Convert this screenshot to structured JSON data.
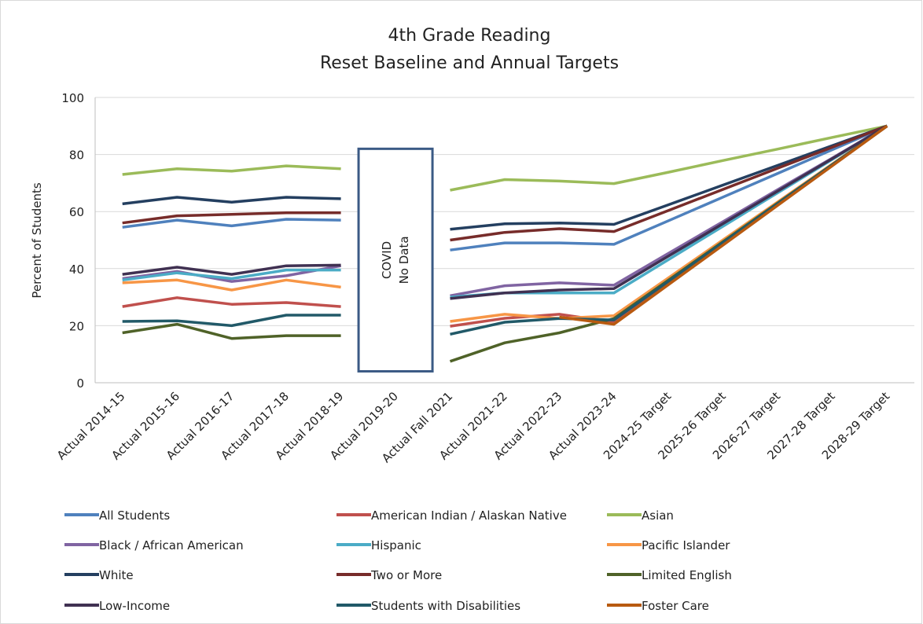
{
  "chart_data": {
    "type": "line",
    "title": [
      "4th Grade Reading",
      "Reset Baseline and Annual Targets"
    ],
    "y_label": "Percent of Students",
    "annotation": [
      "COVID",
      "No Data"
    ],
    "categories": [
      "Actual 2014-15",
      "Actual 2015-16",
      "Actual 2016-17",
      "Actual 2017-18",
      "Actual 2018-19",
      "Actual 2019-20",
      "Actual Fall 2021",
      "Actual 2021-22",
      "Actual 2022-23",
      "Actual 2023-24",
      "2024-25 Target",
      "2025-26 Target",
      "2026-27 Target",
      "2027-28 Target",
      "2028-29 Target"
    ],
    "ylim": [
      0,
      100
    ],
    "yticks": [
      0,
      20,
      40,
      60,
      80,
      100
    ],
    "grid": true,
    "series": [
      {
        "name": "All Students",
        "color": "#4f81bd",
        "values": [
          54.5,
          57,
          55,
          57.3,
          57,
          null,
          46.5,
          49,
          49,
          48.5,
          56.8,
          65.1,
          73.4,
          81.7,
          90
        ]
      },
      {
        "name": "American Indian / Alaskan Native",
        "color": "#c0504d",
        "values": [
          26.7,
          29.8,
          27.5,
          28.1,
          26.7,
          null,
          19.8,
          22.6,
          24,
          21.2,
          35,
          48.7,
          62.5,
          76.2,
          90
        ]
      },
      {
        "name": "Asian",
        "color": "#9bbb59",
        "values": [
          73,
          75,
          74.2,
          76,
          75,
          null,
          67.5,
          71.2,
          70.7,
          69.8,
          73.8,
          77.9,
          81.9,
          86,
          90
        ]
      },
      {
        "name": "Black / African American",
        "color": "#8064a2",
        "values": [
          36.5,
          39,
          35.5,
          37.5,
          41,
          null,
          30.5,
          34,
          35,
          34.2,
          45.4,
          56.5,
          67.7,
          78.8,
          90
        ]
      },
      {
        "name": "Hispanic",
        "color": "#4bacc6",
        "values": [
          36,
          38.5,
          36.5,
          39.5,
          39.5,
          null,
          30,
          31.5,
          31.5,
          31.5,
          43.2,
          54.9,
          66.6,
          78.3,
          90
        ]
      },
      {
        "name": "Pacific Islander",
        "color": "#f79646",
        "values": [
          35,
          36,
          32.5,
          36,
          33.5,
          null,
          21.5,
          24,
          22.5,
          23.5,
          36.8,
          50.1,
          63.4,
          76.7,
          90
        ]
      },
      {
        "name": "White",
        "color": "#243f60",
        "values": [
          62.7,
          65,
          63.3,
          65,
          64.5,
          null,
          53.8,
          55.7,
          56,
          55.5,
          62.4,
          69.3,
          76.2,
          83.1,
          90
        ]
      },
      {
        "name": "Two or More",
        "color": "#772c2a",
        "values": [
          56,
          58.5,
          59,
          59.6,
          59.6,
          null,
          50,
          52.7,
          54,
          53,
          60.4,
          67.8,
          75.2,
          82.6,
          90
        ]
      },
      {
        "name": "Limited English",
        "color": "#4f6228",
        "values": [
          17.5,
          20.5,
          15.5,
          16.5,
          16.5,
          null,
          7.5,
          14,
          17.5,
          22.5,
          36,
          49.5,
          63,
          76.5,
          90
        ]
      },
      {
        "name": "Low-Income",
        "color": "#403152",
        "values": [
          38,
          40.5,
          38,
          41,
          41.2,
          null,
          29.5,
          31.5,
          32.5,
          33,
          44.4,
          55.8,
          67.2,
          78.6,
          90
        ]
      },
      {
        "name": "Students with Disabilities",
        "color": "#215968",
        "values": [
          21.5,
          21.7,
          20,
          23.7,
          23.7,
          null,
          17,
          21.2,
          22.5,
          22,
          35.6,
          49.2,
          62.8,
          76.4,
          90
        ]
      },
      {
        "name": "Foster Care",
        "color": "#b85a10",
        "values": [
          null,
          null,
          null,
          null,
          null,
          null,
          null,
          null,
          23,
          20.5,
          34.4,
          48.3,
          62.2,
          76.1,
          90
        ]
      }
    ]
  }
}
